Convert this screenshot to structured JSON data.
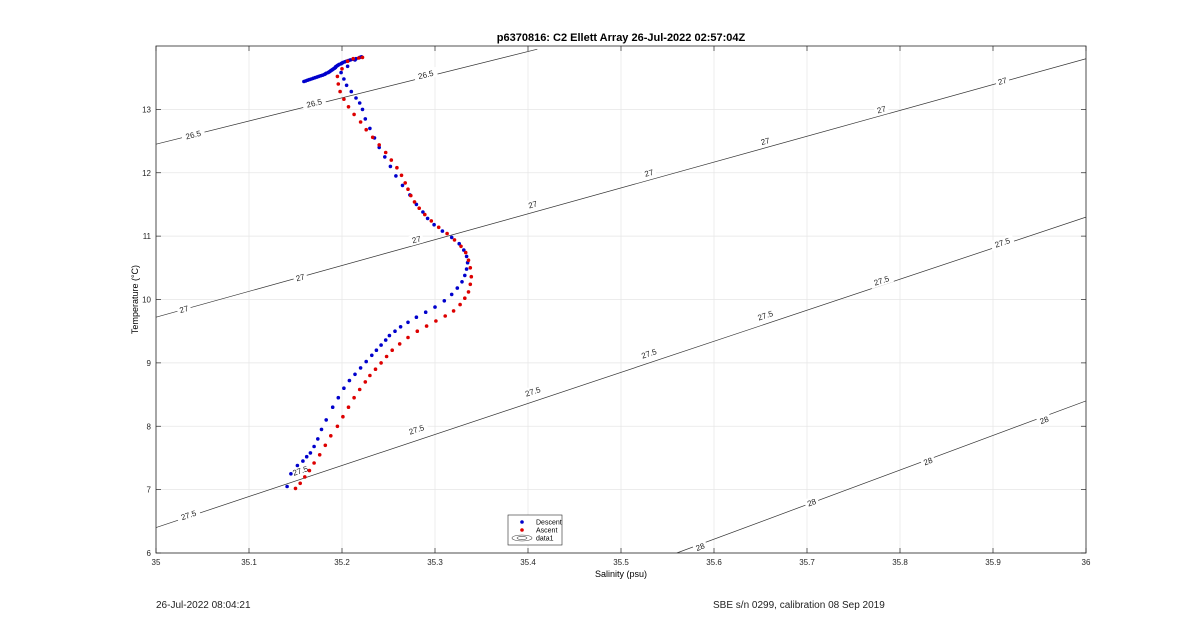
{
  "chart_data": {
    "type": "scatter",
    "title": "p6370816: C2 Ellett Array 26-Jul-2022 02:57:04Z",
    "xlabel": "Salinity (psu)",
    "ylabel": "Temperature (°C)",
    "xlim": [
      35,
      36
    ],
    "ylim": [
      6,
      14
    ],
    "xticks": [
      "35",
      "35.1",
      "35.2",
      "35.3",
      "35.4",
      "35.5",
      "35.6",
      "35.7",
      "35.8",
      "35.9",
      "36"
    ],
    "yticks": [
      "6",
      "7",
      "8",
      "9",
      "10",
      "11",
      "12",
      "13"
    ],
    "grid": true,
    "legend_position": "bottom-center",
    "legend": [
      "Descent",
      "Ascent",
      "data1"
    ],
    "series": [
      {
        "name": "Descent",
        "color": "#0000cc",
        "x": [
          35.141,
          35.145,
          35.152,
          35.158,
          35.162,
          35.166,
          35.17,
          35.174,
          35.178,
          35.183,
          35.19,
          35.196,
          35.202,
          35.208,
          35.214,
          35.22,
          35.226,
          35.232,
          35.237,
          35.242,
          35.247,
          35.251,
          35.257,
          35.263,
          35.271,
          35.28,
          35.29,
          35.3,
          35.31,
          35.318,
          35.324,
          35.329,
          35.332,
          35.334,
          35.335,
          35.334,
          35.331,
          35.326,
          35.318,
          35.308,
          35.299,
          35.292,
          35.287,
          35.28,
          35.273,
          35.265,
          35.258,
          35.252,
          35.246,
          35.24,
          35.235,
          35.23,
          35.225,
          35.222,
          35.219,
          35.215,
          35.21,
          35.205,
          35.202,
          35.199,
          35.206,
          35.214,
          35.221,
          35.219,
          35.215,
          35.212,
          35.209,
          35.207,
          35.205,
          35.203,
          35.201,
          35.2,
          35.199,
          35.197,
          35.196,
          35.195,
          35.194,
          35.193,
          35.193,
          35.192,
          35.191,
          35.19,
          35.189,
          35.188,
          35.187,
          35.186,
          35.185,
          35.183,
          35.182,
          35.181,
          35.179,
          35.177,
          35.175,
          35.173,
          35.171,
          35.169,
          35.167,
          35.165,
          35.163,
          35.161,
          35.159
        ],
        "y": [
          7.05,
          7.25,
          7.38,
          7.45,
          7.52,
          7.58,
          7.68,
          7.8,
          7.95,
          8.1,
          8.3,
          8.45,
          8.6,
          8.72,
          8.82,
          8.92,
          9.02,
          9.12,
          9.2,
          9.28,
          9.36,
          9.43,
          9.5,
          9.57,
          9.64,
          9.72,
          9.8,
          9.88,
          9.98,
          10.08,
          10.18,
          10.28,
          10.38,
          10.48,
          10.58,
          10.68,
          10.78,
          10.88,
          10.98,
          11.08,
          11.18,
          11.28,
          11.38,
          11.5,
          11.65,
          11.8,
          11.95,
          12.1,
          12.25,
          12.4,
          12.55,
          12.7,
          12.85,
          13.0,
          13.1,
          13.18,
          13.28,
          13.38,
          13.48,
          13.58,
          13.68,
          13.78,
          13.83,
          13.82,
          13.8,
          13.79,
          13.78,
          13.77,
          13.76,
          13.75,
          13.74,
          13.73,
          13.72,
          13.71,
          13.7,
          13.69,
          13.68,
          13.67,
          13.66,
          13.65,
          13.64,
          13.63,
          13.62,
          13.61,
          13.6,
          13.59,
          13.58,
          13.57,
          13.56,
          13.55,
          13.54,
          13.53,
          13.52,
          13.51,
          13.5,
          13.49,
          13.48,
          13.47,
          13.46,
          13.45,
          13.44
        ]
      },
      {
        "name": "Ascent",
        "color": "#dd0000",
        "x": [
          35.15,
          35.155,
          35.16,
          35.165,
          35.17,
          35.176,
          35.182,
          35.188,
          35.195,
          35.201,
          35.207,
          35.213,
          35.219,
          35.225,
          35.23,
          35.236,
          35.242,
          35.248,
          35.254,
          35.262,
          35.271,
          35.281,
          35.291,
          35.301,
          35.311,
          35.32,
          35.327,
          35.332,
          35.336,
          35.338,
          35.339,
          35.338,
          35.336,
          35.333,
          35.328,
          35.321,
          35.313,
          35.304,
          35.296,
          35.289,
          35.283,
          35.278,
          35.274,
          35.271,
          35.268,
          35.264,
          35.259,
          35.253,
          35.247,
          35.24,
          35.233,
          35.226,
          35.22,
          35.213,
          35.207,
          35.202,
          35.198,
          35.196,
          35.195,
          35.2,
          35.206,
          35.212,
          35.218,
          35.222
        ],
        "y": [
          7.02,
          7.1,
          7.2,
          7.3,
          7.42,
          7.55,
          7.7,
          7.85,
          8.0,
          8.15,
          8.3,
          8.45,
          8.58,
          8.7,
          8.8,
          8.9,
          9.0,
          9.1,
          9.2,
          9.3,
          9.4,
          9.5,
          9.58,
          9.66,
          9.74,
          9.82,
          9.92,
          10.02,
          10.12,
          10.24,
          10.36,
          10.5,
          10.62,
          10.74,
          10.84,
          10.94,
          11.04,
          11.14,
          11.24,
          11.34,
          11.44,
          11.54,
          11.64,
          11.74,
          11.84,
          11.96,
          12.08,
          12.2,
          12.32,
          12.44,
          12.56,
          12.68,
          12.8,
          12.92,
          13.04,
          13.16,
          13.28,
          13.4,
          13.52,
          13.64,
          13.76,
          13.8,
          13.81,
          13.82
        ]
      }
    ],
    "contours": [
      {
        "level": "26.5",
        "segments": [
          [
            [
              35.0,
              12.45
            ],
            [
              35.41,
              13.95
            ]
          ]
        ],
        "labels": [
          {
            "text": "26.5",
            "x": 35.04,
            "y": 12.6
          },
          {
            "text": "26.5",
            "x": 35.17,
            "y": 13.1
          },
          {
            "text": "26.5",
            "x": 35.29,
            "y": 13.55
          }
        ]
      },
      {
        "level": "27",
        "segments": [
          [
            [
              35.0,
              9.72
            ],
            [
              36.0,
              13.8
            ]
          ]
        ],
        "labels": [
          {
            "text": "27",
            "x": 35.03,
            "y": 9.85
          },
          {
            "text": "27",
            "x": 35.155,
            "y": 10.35
          },
          {
            "text": "27",
            "x": 35.28,
            "y": 10.95
          },
          {
            "text": "27",
            "x": 35.405,
            "y": 11.5
          },
          {
            "text": "27",
            "x": 35.53,
            "y": 12.0
          },
          {
            "text": "27",
            "x": 35.655,
            "y": 12.5
          },
          {
            "text": "27",
            "x": 35.78,
            "y": 13.0
          },
          {
            "text": "27",
            "x": 35.91,
            "y": 13.45
          }
        ]
      },
      {
        "level": "27.5",
        "segments": [
          [
            [
              35.0,
              6.4
            ],
            [
              36.0,
              11.3
            ]
          ]
        ],
        "labels": [
          {
            "text": "27.5",
            "x": 35.035,
            "y": 6.6
          },
          {
            "text": "27.5",
            "x": 35.155,
            "y": 7.3
          },
          {
            "text": "27.5",
            "x": 35.28,
            "y": 7.95
          },
          {
            "text": "27.5",
            "x": 35.405,
            "y": 8.55
          },
          {
            "text": "27.5",
            "x": 35.53,
            "y": 9.15
          },
          {
            "text": "27.5",
            "x": 35.655,
            "y": 9.75
          },
          {
            "text": "27.5",
            "x": 35.78,
            "y": 10.3
          },
          {
            "text": "27.5",
            "x": 35.91,
            "y": 10.9
          }
        ]
      },
      {
        "level": "28",
        "segments": [
          [
            [
              35.56,
              6.0
            ],
            [
              36.0,
              8.4
            ]
          ]
        ],
        "labels": [
          {
            "text": "28",
            "x": 35.585,
            "y": 6.1
          },
          {
            "text": "28",
            "x": 35.705,
            "y": 6.8
          },
          {
            "text": "28",
            "x": 35.83,
            "y": 7.45
          },
          {
            "text": "28",
            "x": 35.955,
            "y": 8.1
          }
        ]
      }
    ]
  },
  "footer": {
    "timestamp": "26-Jul-2022 08:04:21",
    "calibration": "SBE s/n 0299, calibration 08 Sep 2019"
  }
}
